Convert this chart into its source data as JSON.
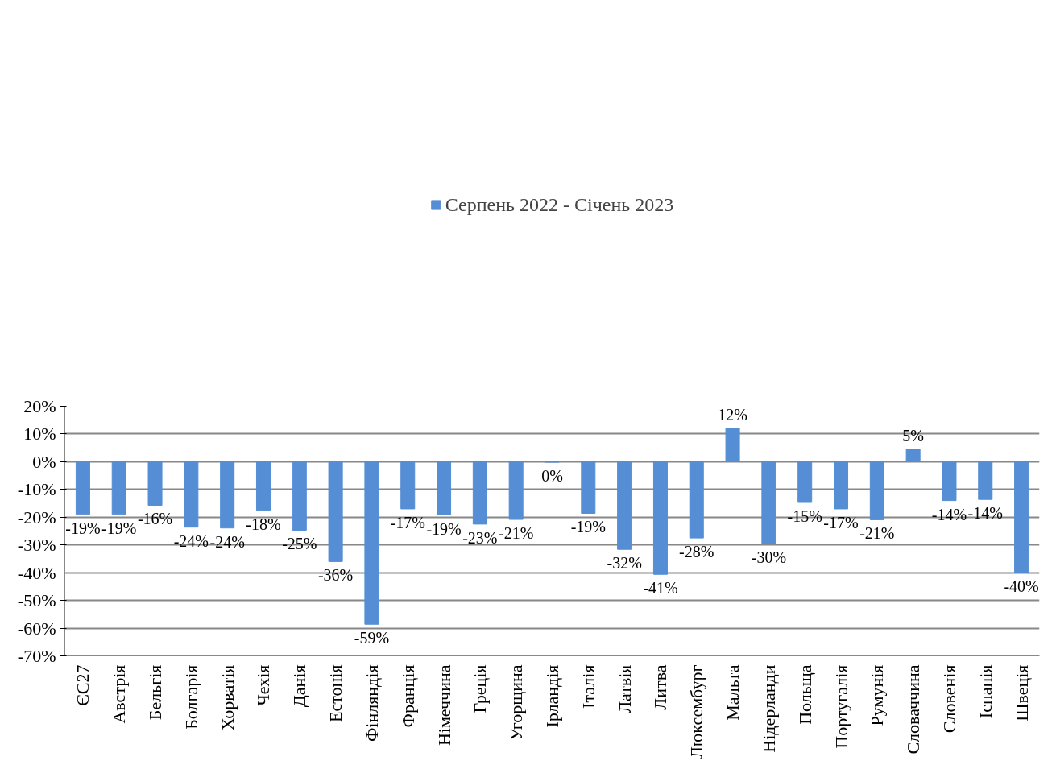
{
  "chart_data": {
    "type": "bar",
    "categories": [
      "ЄС27",
      "Австрія",
      "Бельгія",
      "Болгарія",
      "Хорватія",
      "Чехія",
      "Данія",
      "Естонія",
      "Фінляндія",
      "Франція",
      "Німеччина",
      "Греція",
      "Угорщина",
      "Ірландія",
      "Італія",
      "Латвія",
      "Литва",
      "Люксембург",
      "Мальта",
      "Нідерланди",
      "Польща",
      "Португалія",
      "Румунія",
      "Словаччина",
      "Словенія",
      "Іспанія",
      "Швеція"
    ],
    "series": [
      {
        "name": "Серпень 2022 - Січень 2023",
        "color": "#558ed5",
        "values": [
          -19.0,
          -19.0,
          -15.7,
          -23.6,
          -23.9,
          -17.5,
          -24.7,
          -36.0,
          -58.6,
          -17.0,
          -19.2,
          -22.5,
          -20.8,
          -0.2,
          -18.6,
          -31.6,
          -40.6,
          -27.5,
          12.1,
          -29.6,
          -14.7,
          -17.0,
          -20.9,
          4.6,
          -14.0,
          -13.6,
          -40.0
        ],
        "value_labels": [
          "-19%",
          "-19%",
          "-16%",
          "-24%",
          "-24%",
          "-18%",
          "-25%",
          "-36%",
          "-59%",
          "-17%",
          "-19%",
          "-23%",
          "-21%",
          "0%",
          "-19%",
          "-32%",
          "-41%",
          "-28%",
          "12%",
          "-30%",
          "-15%",
          "-17%",
          "-21%",
          "5%",
          "-14%",
          "-14%",
          "-40%"
        ]
      }
    ],
    "ylim": [
      -70,
      20
    ],
    "yticks": [
      {
        "value": -70,
        "label": "-70%"
      },
      {
        "value": -60,
        "label": "-60%"
      },
      {
        "value": -50,
        "label": "-50%"
      },
      {
        "value": -40,
        "label": "-40%"
      },
      {
        "value": -30,
        "label": "-30%"
      },
      {
        "value": -20,
        "label": "-20%"
      },
      {
        "value": -10,
        "label": "-10%"
      },
      {
        "value": 0,
        "label": "0%"
      },
      {
        "value": 10,
        "label": "10%"
      },
      {
        "value": 20,
        "label": "20%"
      }
    ],
    "grid": "y",
    "legend": "top"
  }
}
